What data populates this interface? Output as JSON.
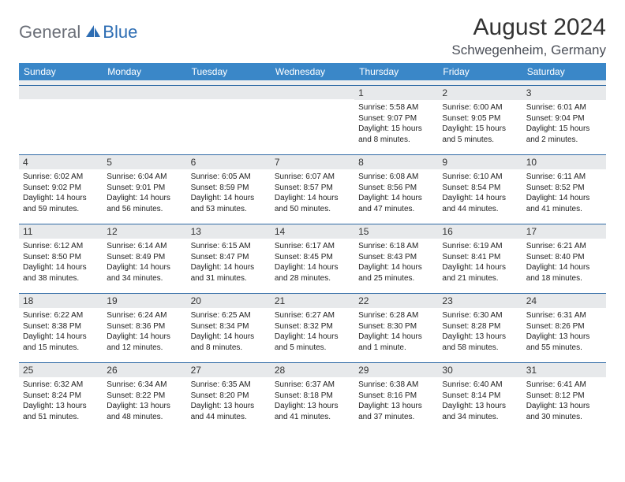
{
  "brand": {
    "general": "General",
    "blue": "Blue"
  },
  "title": "August 2024",
  "location": "Schwegenheim, Germany",
  "colors": {
    "header_bg": "#3a87c8",
    "header_text": "#ffffff",
    "daynum_bg": "#e7e9eb",
    "border_top": "#2f6aa5",
    "logo_gray": "#6b6f78",
    "logo_blue": "#2d6db3",
    "page_bg": "#ffffff"
  },
  "daysOfWeek": [
    "Sunday",
    "Monday",
    "Tuesday",
    "Wednesday",
    "Thursday",
    "Friday",
    "Saturday"
  ],
  "weeks": [
    [
      null,
      null,
      null,
      null,
      {
        "n": "1",
        "sr": "5:58 AM",
        "ss": "9:07 PM",
        "d1": "Daylight: 15 hours",
        "d2": "and 8 minutes."
      },
      {
        "n": "2",
        "sr": "6:00 AM",
        "ss": "9:05 PM",
        "d1": "Daylight: 15 hours",
        "d2": "and 5 minutes."
      },
      {
        "n": "3",
        "sr": "6:01 AM",
        "ss": "9:04 PM",
        "d1": "Daylight: 15 hours",
        "d2": "and 2 minutes."
      }
    ],
    [
      {
        "n": "4",
        "sr": "6:02 AM",
        "ss": "9:02 PM",
        "d1": "Daylight: 14 hours",
        "d2": "and 59 minutes."
      },
      {
        "n": "5",
        "sr": "6:04 AM",
        "ss": "9:01 PM",
        "d1": "Daylight: 14 hours",
        "d2": "and 56 minutes."
      },
      {
        "n": "6",
        "sr": "6:05 AM",
        "ss": "8:59 PM",
        "d1": "Daylight: 14 hours",
        "d2": "and 53 minutes."
      },
      {
        "n": "7",
        "sr": "6:07 AM",
        "ss": "8:57 PM",
        "d1": "Daylight: 14 hours",
        "d2": "and 50 minutes."
      },
      {
        "n": "8",
        "sr": "6:08 AM",
        "ss": "8:56 PM",
        "d1": "Daylight: 14 hours",
        "d2": "and 47 minutes."
      },
      {
        "n": "9",
        "sr": "6:10 AM",
        "ss": "8:54 PM",
        "d1": "Daylight: 14 hours",
        "d2": "and 44 minutes."
      },
      {
        "n": "10",
        "sr": "6:11 AM",
        "ss": "8:52 PM",
        "d1": "Daylight: 14 hours",
        "d2": "and 41 minutes."
      }
    ],
    [
      {
        "n": "11",
        "sr": "6:12 AM",
        "ss": "8:50 PM",
        "d1": "Daylight: 14 hours",
        "d2": "and 38 minutes."
      },
      {
        "n": "12",
        "sr": "6:14 AM",
        "ss": "8:49 PM",
        "d1": "Daylight: 14 hours",
        "d2": "and 34 minutes."
      },
      {
        "n": "13",
        "sr": "6:15 AM",
        "ss": "8:47 PM",
        "d1": "Daylight: 14 hours",
        "d2": "and 31 minutes."
      },
      {
        "n": "14",
        "sr": "6:17 AM",
        "ss": "8:45 PM",
        "d1": "Daylight: 14 hours",
        "d2": "and 28 minutes."
      },
      {
        "n": "15",
        "sr": "6:18 AM",
        "ss": "8:43 PM",
        "d1": "Daylight: 14 hours",
        "d2": "and 25 minutes."
      },
      {
        "n": "16",
        "sr": "6:19 AM",
        "ss": "8:41 PM",
        "d1": "Daylight: 14 hours",
        "d2": "and 21 minutes."
      },
      {
        "n": "17",
        "sr": "6:21 AM",
        "ss": "8:40 PM",
        "d1": "Daylight: 14 hours",
        "d2": "and 18 minutes."
      }
    ],
    [
      {
        "n": "18",
        "sr": "6:22 AM",
        "ss": "8:38 PM",
        "d1": "Daylight: 14 hours",
        "d2": "and 15 minutes."
      },
      {
        "n": "19",
        "sr": "6:24 AM",
        "ss": "8:36 PM",
        "d1": "Daylight: 14 hours",
        "d2": "and 12 minutes."
      },
      {
        "n": "20",
        "sr": "6:25 AM",
        "ss": "8:34 PM",
        "d1": "Daylight: 14 hours",
        "d2": "and 8 minutes."
      },
      {
        "n": "21",
        "sr": "6:27 AM",
        "ss": "8:32 PM",
        "d1": "Daylight: 14 hours",
        "d2": "and 5 minutes."
      },
      {
        "n": "22",
        "sr": "6:28 AM",
        "ss": "8:30 PM",
        "d1": "Daylight: 14 hours",
        "d2": "and 1 minute."
      },
      {
        "n": "23",
        "sr": "6:30 AM",
        "ss": "8:28 PM",
        "d1": "Daylight: 13 hours",
        "d2": "and 58 minutes."
      },
      {
        "n": "24",
        "sr": "6:31 AM",
        "ss": "8:26 PM",
        "d1": "Daylight: 13 hours",
        "d2": "and 55 minutes."
      }
    ],
    [
      {
        "n": "25",
        "sr": "6:32 AM",
        "ss": "8:24 PM",
        "d1": "Daylight: 13 hours",
        "d2": "and 51 minutes."
      },
      {
        "n": "26",
        "sr": "6:34 AM",
        "ss": "8:22 PM",
        "d1": "Daylight: 13 hours",
        "d2": "and 48 minutes."
      },
      {
        "n": "27",
        "sr": "6:35 AM",
        "ss": "8:20 PM",
        "d1": "Daylight: 13 hours",
        "d2": "and 44 minutes."
      },
      {
        "n": "28",
        "sr": "6:37 AM",
        "ss": "8:18 PM",
        "d1": "Daylight: 13 hours",
        "d2": "and 41 minutes."
      },
      {
        "n": "29",
        "sr": "6:38 AM",
        "ss": "8:16 PM",
        "d1": "Daylight: 13 hours",
        "d2": "and 37 minutes."
      },
      {
        "n": "30",
        "sr": "6:40 AM",
        "ss": "8:14 PM",
        "d1": "Daylight: 13 hours",
        "d2": "and 34 minutes."
      },
      {
        "n": "31",
        "sr": "6:41 AM",
        "ss": "8:12 PM",
        "d1": "Daylight: 13 hours",
        "d2": "and 30 minutes."
      }
    ]
  ],
  "labels": {
    "sunrise": "Sunrise: ",
    "sunset": "Sunset: "
  }
}
